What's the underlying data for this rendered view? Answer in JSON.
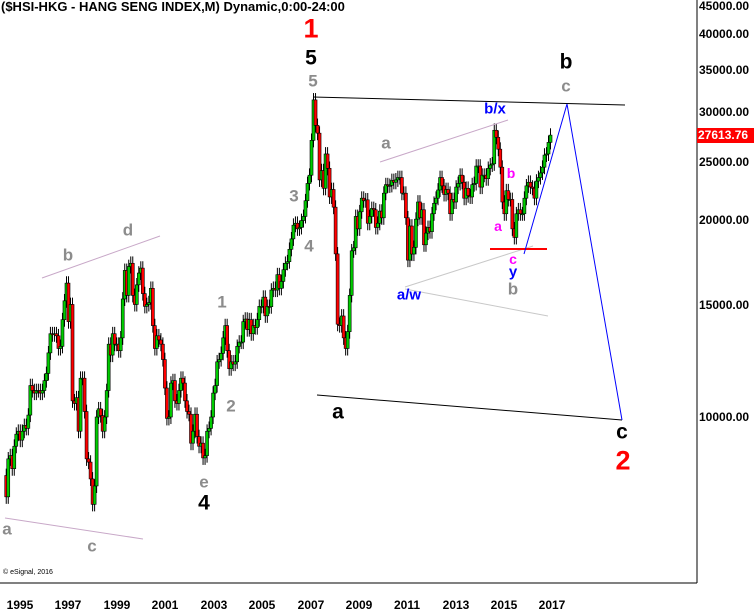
{
  "title": "($HSI-HKG - HANG SENG INDEX,M) Dynamic,0:00-24:00",
  "copyright": "© eSignal, 2016",
  "last_price_tag": "27613.76",
  "colors": {
    "up": "#00cc00",
    "down": "#ff0000",
    "projection": "#0000ff",
    "last_price": "#ff0000",
    "wave_gray": "#8c8c8c",
    "channel": "#c8a8c8"
  },
  "chart_data": {
    "type": "candlestick",
    "y_scale": "log",
    "ylim": [
      10000,
      45000
    ],
    "y_ticks": [
      "45000.00",
      "40000.00",
      "35000.00",
      "30000.00",
      "25000.00",
      "20000.00",
      "15000.00",
      "10000.00"
    ],
    "y_tick_values": [
      45000,
      40000,
      35000,
      30000,
      25000,
      20000,
      15000,
      10000
    ],
    "x_ticks": [
      "1995",
      "1997",
      "1999",
      "2001",
      "2003",
      "2005",
      "2007",
      "2009",
      "2011",
      "2013",
      "2015",
      "2017"
    ],
    "start": "1995-01",
    "frequency": "monthly",
    "closes": [
      7500,
      8600,
      8700,
      8300,
      9000,
      9400,
      9500,
      9200,
      9500,
      9700,
      9600,
      10070,
      11200,
      11000,
      10900,
      11000,
      11000,
      10900,
      11000,
      11400,
      11700,
      12600,
      13500,
      13450,
      13500,
      13400,
      12800,
      12900,
      14200,
      15200,
      16200,
      14100,
      15000,
      10600,
      10500,
      10720,
      9500,
      11500,
      11500,
      10200,
      8600,
      8500,
      8000,
      7300,
      7800,
      10000,
      10300,
      10050,
      9500,
      10000,
      11000,
      13000,
      12500,
      13500,
      13000,
      13000,
      12700,
      13300,
      15300,
      16960,
      15500,
      17200,
      17400,
      15500,
      15000,
      16100,
      16800,
      17100,
      15600,
      14900,
      15000,
      15100,
      15900,
      13900,
      12800,
      13400,
      13200,
      13000,
      12300,
      11100,
      9950,
      10000,
      11300,
      11400,
      10600,
      10500,
      11000,
      11500,
      11300,
      10600,
      10200,
      10100,
      9100,
      9500,
      10100,
      9320,
      9000,
      9100,
      8630,
      8700,
      9500,
      9600,
      10000,
      10900,
      11200,
      12200,
      12300,
      12580,
      13300,
      13900,
      12700,
      11900,
      12200,
      12100,
      12200,
      12900,
      13100,
      13100,
      14100,
      14230,
      13700,
      14200,
      13500,
      13900,
      13800,
      14200,
      14900,
      14900,
      15400,
      14400,
      14900,
      14880,
      15800,
      15900,
      15800,
      16700,
      15900,
      16300,
      17000,
      17400,
      17500,
      18300,
      19000,
      19960,
      20100,
      19700,
      19800,
      20300,
      20600,
      21800,
      23200,
      23900,
      27100,
      31350,
      28600,
      27810,
      23500,
      24300,
      22800,
      25800,
      24500,
      22100,
      22700,
      21300,
      18000,
      13970,
      13900,
      14390,
      13300,
      12800,
      13600,
      15500,
      18200,
      18400,
      20600,
      19700,
      20950,
      22000,
      21800,
      21870,
      20100,
      20600,
      21200,
      21100,
      19800,
      20100,
      21000,
      20500,
      22400,
      23100,
      23000,
      23040,
      23450,
      23300,
      23500,
      23700,
      23700,
      22400,
      22400,
      20500,
      17600,
      19900,
      17990,
      18430,
      20400,
      21700,
      20500,
      21100,
      18600,
      19400,
      19800,
      19500,
      20800,
      21600,
      22000,
      22660,
      23700,
      23000,
      22300,
      22700,
      22400,
      20800,
      21900,
      21700,
      22900,
      23200,
      23900,
      23300,
      22000,
      22800,
      22200,
      22100,
      23100,
      23200,
      24700,
      24700,
      22900,
      23900,
      23900,
      23600,
      24500,
      24800,
      24900,
      28100,
      27400,
      26250,
      24600,
      21700,
      20800,
      22600,
      21900,
      21900,
      19700,
      19100,
      20800,
      21100,
      20800,
      20800,
      22000,
      23000,
      23300,
      22900,
      22800,
      22000,
      23400,
      23700,
      24100,
      24600,
      25700,
      25800,
      26900,
      27613.76
    ],
    "annotations": [
      "1",
      "5",
      "5",
      "b",
      "c",
      "b/x",
      "a",
      "3",
      "4",
      "b",
      "a",
      "c",
      "y",
      "b",
      "a/w",
      "1",
      "2",
      "a",
      "b",
      "d",
      "e",
      "4",
      "a",
      "c",
      "c",
      "2"
    ]
  }
}
